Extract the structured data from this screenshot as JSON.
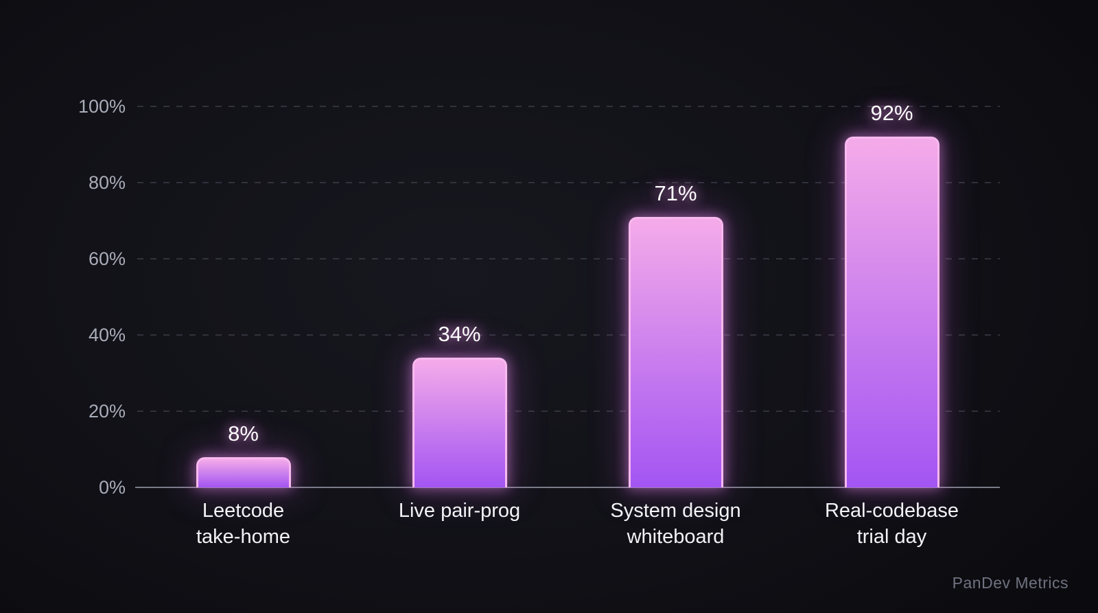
{
  "chart_data": {
    "type": "bar",
    "title": "",
    "xlabel": "",
    "ylabel": "",
    "categories": [
      "Leetcode take-home",
      "Live pair-prog",
      "System design whiteboard",
      "Real-codebase trial day"
    ],
    "category_lines": [
      [
        "Leetcode",
        "take-home"
      ],
      [
        "Live pair-prog"
      ],
      [
        "System design",
        "whiteboard"
      ],
      [
        "Real-codebase",
        "trial day"
      ]
    ],
    "values": [
      8,
      34,
      71,
      92
    ],
    "value_labels": [
      "8%",
      "34%",
      "71%",
      "92%"
    ],
    "ylim": [
      0,
      100
    ],
    "ytick_values": [
      0,
      20,
      40,
      60,
      80,
      100
    ],
    "ytick_labels": [
      "0%",
      "20%",
      "40%",
      "60%",
      "80%",
      "100%"
    ],
    "grid": "horizontal-dashed",
    "legend": "none",
    "watermark": "PanDev Metrics",
    "colors": {
      "background_center": "#17171f",
      "background_edge": "#0b0b0f",
      "bar_gradient_top": "#f5abe9",
      "bar_gradient_mid": "#c77bee",
      "bar_gradient_bottom": "#a355f2",
      "bar_border": "#f7b9ee",
      "bar_glow": "rgba(235, 140, 238, 0.5)",
      "gridline": "#4a4c58",
      "axis_line": "#8d919c",
      "ytick_text": "#a9adb9",
      "category_text": "#f3f3f6",
      "value_text": "#ffffff",
      "watermark_text": "#6f7280"
    }
  }
}
